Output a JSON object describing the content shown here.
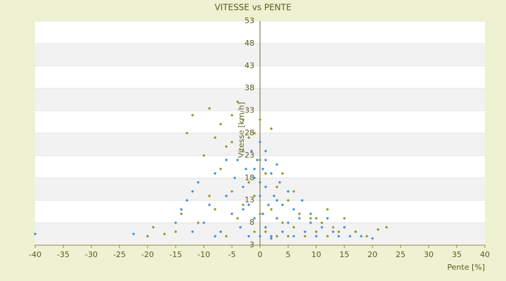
{
  "chart_data": {
    "type": "scatter",
    "title": "VITESSE vs PENTE",
    "xlabel": "Pente [%]",
    "ylabel": "Vitesse [km/h]",
    "xlim": [
      -40,
      40
    ],
    "xticks": [
      -40,
      -35,
      -30,
      -25,
      -20,
      -15,
      -10,
      -5,
      0,
      5,
      10,
      15,
      20,
      25,
      30,
      35,
      40
    ],
    "ylim": [
      3,
      53
    ],
    "yticks": [
      3,
      8,
      13,
      18,
      23,
      28,
      33,
      38,
      43,
      48,
      53
    ],
    "grid": true,
    "series": [
      {
        "color": "#3f8fd8",
        "x": [
          -40,
          -22.5,
          -20,
          -15,
          -14,
          -13,
          -12,
          -11,
          -10,
          -9,
          -8,
          -7,
          -6,
          -5,
          -4.5,
          -4,
          -3.5,
          -3,
          -2.5,
          -2,
          -1.5,
          -1,
          -1,
          -0.5,
          0,
          0,
          0,
          0.5,
          0.5,
          1,
          1,
          1,
          1.5,
          2,
          2,
          2.5,
          3,
          3,
          3.5,
          4,
          4,
          5,
          5,
          6,
          6,
          7,
          7.5,
          8,
          9,
          10,
          11,
          12,
          13,
          14,
          15,
          16,
          17,
          18,
          20,
          -8,
          -2,
          2,
          -6,
          -1,
          1,
          3,
          -3,
          9,
          -12,
          0
        ],
        "values": [
          5.5,
          5.5,
          5,
          8,
          11,
          13,
          15,
          17,
          8,
          12,
          19,
          6,
          14,
          10,
          18,
          22,
          7,
          16,
          20,
          12,
          24,
          9,
          18,
          22,
          5,
          14,
          26,
          10,
          20,
          7,
          16,
          24,
          12,
          19,
          5,
          14,
          9,
          21,
          17,
          6,
          12,
          15,
          8,
          11,
          5,
          9,
          13,
          6,
          8,
          5,
          7,
          9,
          6,
          5,
          7,
          5,
          6,
          5,
          4.5,
          5,
          5,
          4.5,
          22,
          20,
          22,
          13,
          11,
          10,
          6,
          17
        ]
      },
      {
        "color": "#8f9a1d",
        "x": [
          -12,
          -9,
          -5,
          -13,
          -4,
          -3,
          -8,
          -6,
          -10,
          -7,
          -11,
          -15,
          -17,
          -19,
          -5,
          -3,
          -2,
          -1,
          0,
          1,
          2,
          2,
          3,
          4,
          5,
          6,
          7,
          8,
          9,
          10,
          11,
          12,
          13,
          14,
          15,
          17,
          19,
          21,
          22.5,
          -1,
          -4,
          -6,
          -9,
          0,
          1,
          3,
          -2,
          -8,
          5,
          -14,
          -20,
          -7,
          -5,
          -3,
          6,
          10,
          12,
          -1,
          0,
          4
        ],
        "values": [
          32,
          33.5,
          32,
          28,
          35,
          31,
          27,
          25,
          23,
          20,
          8,
          6,
          5.5,
          7,
          15,
          12,
          27,
          28,
          22,
          19,
          29,
          11,
          16,
          8,
          13,
          7,
          10,
          5,
          9,
          6,
          8,
          11,
          7,
          6,
          9,
          6,
          5,
          6.5,
          7,
          6,
          9,
          5,
          14,
          10,
          6,
          5,
          17,
          11,
          5,
          10,
          5,
          30,
          26,
          24,
          15,
          9,
          5,
          14,
          31,
          19
        ]
      }
    ]
  }
}
